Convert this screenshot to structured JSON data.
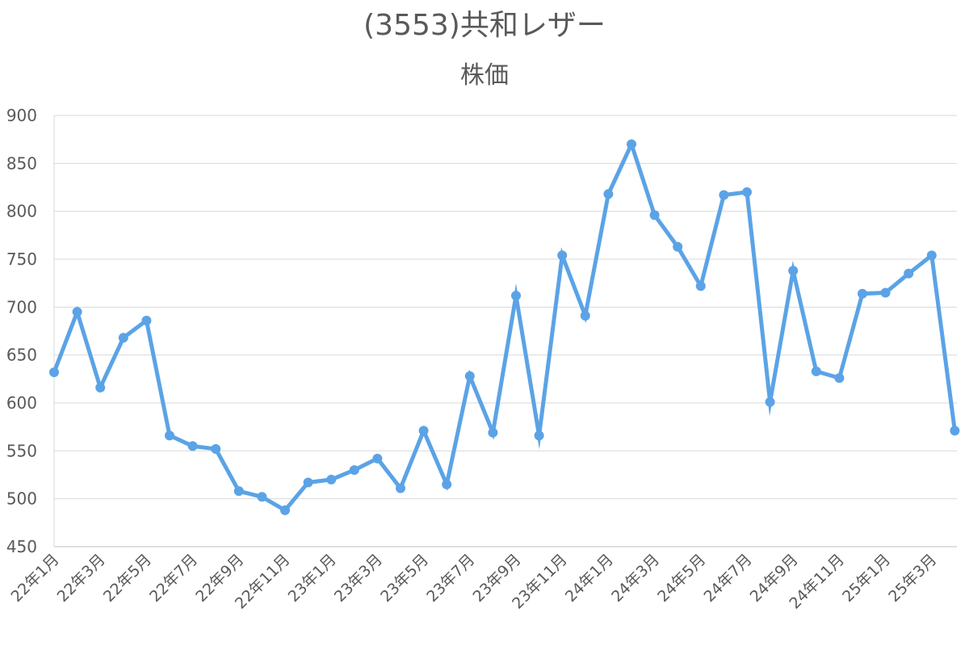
{
  "chart_data": {
    "type": "line",
    "title": "(3553)共和レザー",
    "subtitle": "株価",
    "xlabel": "",
    "ylabel": "",
    "ylim": [
      450,
      900
    ],
    "yticks": [
      450,
      500,
      550,
      600,
      650,
      700,
      750,
      800,
      850,
      900
    ],
    "grid": true,
    "legend": "none",
    "color": "#5BA3E6",
    "x": [
      "22年1月",
      "22年2月",
      "22年3月",
      "22年4月",
      "22年5月",
      "22年6月",
      "22年7月",
      "22年8月",
      "22年9月",
      "22年10月",
      "22年11月",
      "22年12月",
      "23年1月",
      "23年2月",
      "23年3月",
      "23年4月",
      "23年5月",
      "23年6月",
      "23年7月",
      "23年8月",
      "23年9月",
      "23年10月",
      "23年11月",
      "23年12月",
      "24年1月",
      "24年2月",
      "24年3月",
      "24年4月",
      "24年5月",
      "24年6月",
      "24年7月",
      "24年8月",
      "24年9月",
      "24年10月",
      "24年11月",
      "24年12月",
      "25年1月",
      "25年2月",
      "25年3月",
      "25年4月"
    ],
    "x_tick_labels": [
      "22年1月",
      "22年3月",
      "22年5月",
      "22年7月",
      "22年9月",
      "22年11月",
      "23年1月",
      "23年3月",
      "23年5月",
      "23年7月",
      "23年9月",
      "23年11月",
      "24年1月",
      "24年3月",
      "24年5月",
      "24年7月",
      "24年9月",
      "24年11月",
      "25年1月",
      "25年3月"
    ],
    "series": [
      {
        "values": [
          632,
          695,
          616,
          668,
          686,
          566,
          555,
          552,
          508,
          502,
          488,
          517,
          520,
          530,
          542,
          511,
          571,
          515,
          628,
          569,
          712,
          566,
          754,
          691,
          818,
          870,
          796,
          763,
          722,
          817,
          820,
          601,
          738,
          633,
          626,
          714,
          715,
          735,
          754,
          571
        ]
      }
    ]
  }
}
